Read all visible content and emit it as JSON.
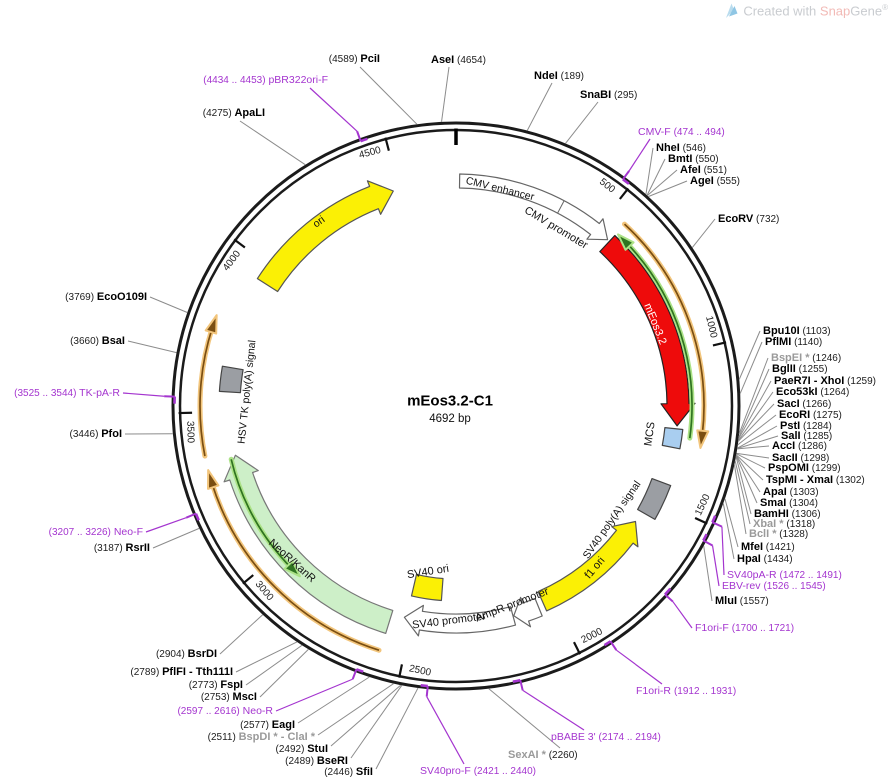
{
  "watermark": {
    "prefix": "Created with ",
    "snap": "Snap",
    "gene": "Gene",
    "reg": "®"
  },
  "plasmid": {
    "name": "mEos3.2-C1",
    "size": "4692 bp"
  },
  "ticks": [
    "500",
    "1000",
    "1500",
    "2000",
    "2500",
    "3000",
    "3500",
    "4000",
    "4500"
  ],
  "features": {
    "ori": "ori",
    "cmv_enhancer": "CMV enhancer",
    "cmv_promoter": "CMV promoter",
    "meos": "mEos3.2",
    "mcs": "MCS",
    "sv40_polya": "SV40 poly(A) signal",
    "f1_ori": "f1 ori",
    "ampr_promoter": "AmpR promoter",
    "sv40_promoter": "SV40 promoter",
    "sv40_ori": "SV40 ori",
    "neor_kanr": "NeoR/KanR",
    "hsv_tk_polya": "HSV TK poly(A) signal"
  },
  "callouts": [
    {
      "n": "AseI",
      "p": "(4654)"
    },
    {
      "n": "NdeI",
      "p": "(189)"
    },
    {
      "n": "SnaBI",
      "p": "(295)"
    },
    {
      "n": "CMV-F",
      "p": "(474 .. 494)"
    },
    {
      "n": "NheI",
      "p": "(546)"
    },
    {
      "n": "BmtI",
      "p": "(550)"
    },
    {
      "n": "AfeI",
      "p": "(551)"
    },
    {
      "n": "AgeI",
      "p": "(555)"
    },
    {
      "n": "EcoRV",
      "p": "(732)"
    },
    {
      "n": "Bpu10I",
      "p": "(1103)"
    },
    {
      "n": "PflMI",
      "p": "(1140)"
    },
    {
      "n": "BspEI *",
      "p": "(1246)"
    },
    {
      "n": "BglII",
      "p": "(1255)"
    },
    {
      "n": "PaeR7I - XhoI",
      "p": "(1259)"
    },
    {
      "n": "Eco53kI",
      "p": "(1264)"
    },
    {
      "n": "SacI",
      "p": "(1266)"
    },
    {
      "n": "EcoRI",
      "p": "(1275)"
    },
    {
      "n": "PstI",
      "p": "(1284)"
    },
    {
      "n": "SalI",
      "p": "(1285)"
    },
    {
      "n": "AccI",
      "p": "(1286)"
    },
    {
      "n": "SacII",
      "p": "(1298)"
    },
    {
      "n": "PspOMI",
      "p": "(1299)"
    },
    {
      "n": "TspMI - XmaI",
      "p": "(1302)"
    },
    {
      "n": "ApaI",
      "p": "(1303)"
    },
    {
      "n": "SmaI",
      "p": "(1304)"
    },
    {
      "n": "BamHI",
      "p": "(1306)"
    },
    {
      "n": "XbaI *",
      "p": "(1318)"
    },
    {
      "n": "BclI *",
      "p": "(1328)"
    },
    {
      "n": "MfeI",
      "p": "(1421)"
    },
    {
      "n": "HpaI",
      "p": "(1434)"
    },
    {
      "n": "SV40pA-R",
      "p": "(1472 .. 1491)"
    },
    {
      "n": "EBV-rev",
      "p": "(1526 .. 1545)"
    },
    {
      "n": "MluI",
      "p": "(1557)"
    },
    {
      "n": "F1ori-F",
      "p": "(1700 .. 1721)"
    },
    {
      "n": "F1ori-R",
      "p": "(1912 .. 1931)"
    },
    {
      "n": "pBABE 3'",
      "p": "(2174 .. 2194)"
    },
    {
      "n": "SexAI *",
      "p": "(2260)"
    },
    {
      "n": "SV40pro-F",
      "p": "(2421 .. 2440)"
    },
    {
      "n": "SfiI",
      "p": "(2446)"
    },
    {
      "n": "BseRI",
      "p": "(2489)"
    },
    {
      "n": "StuI",
      "p": "(2492)"
    },
    {
      "n": "BspDI * - ClaI *",
      "p": "(2511)"
    },
    {
      "n": "EagI",
      "p": "(2577)"
    },
    {
      "n": "Neo-R",
      "p": "(2597 .. 2616)"
    },
    {
      "n": "MscI",
      "p": "(2753)"
    },
    {
      "n": "FspI",
      "p": "(2773)"
    },
    {
      "n": "PflFI - Tth111I",
      "p": "(2789)"
    },
    {
      "n": "BsrDI",
      "p": "(2904)"
    },
    {
      "n": "RsrII",
      "p": "(3187)"
    },
    {
      "n": "Neo-F",
      "p": "(3207 .. 3226)"
    },
    {
      "n": "PfoI",
      "p": "(3446)"
    },
    {
      "n": "TK-pA-R",
      "p": "(3525 .. 3544)"
    },
    {
      "n": "BsaI",
      "p": "(3660)"
    },
    {
      "n": "EcoO109I",
      "p": "(3769)"
    },
    {
      "n": "ApaLI",
      "p": "(4275)"
    },
    {
      "n": "pBR322ori-F",
      "p": "(4434 .. 4453)"
    },
    {
      "n": "PciI",
      "p": "(4589)"
    }
  ],
  "colors": {
    "purple": "#A435CF",
    "red": "#EE0B0B",
    "yellow": "#FBF005",
    "green_band": "#CDEFC8",
    "blue_box": "#A9CEF0",
    "gray_box": "#9B9EA3",
    "white_band": "#FFFFFF",
    "orange_glow": "#F2C57C",
    "orange_core": "#7A4E12",
    "green_glow": "#ACE287",
    "green_core": "#2F7420",
    "ring": "#1B1B1B",
    "leader": "#8C8C8C"
  }
}
